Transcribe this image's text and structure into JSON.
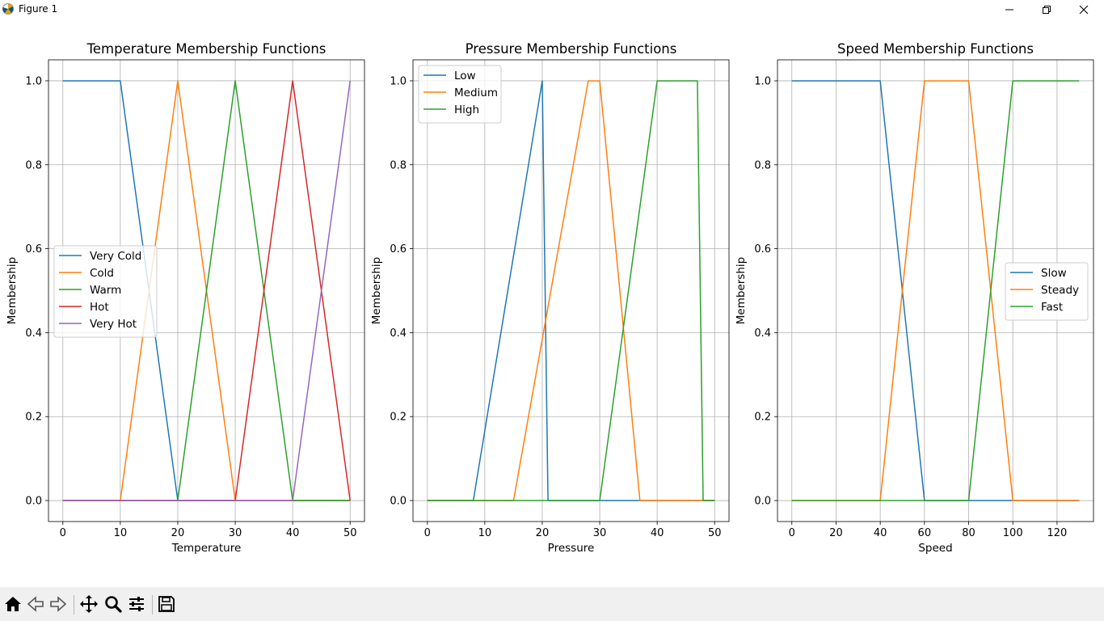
{
  "window": {
    "title": "Figure 1"
  },
  "toolbar": {
    "buttons": [
      "home-icon",
      "back-icon",
      "forward-icon",
      "pan-icon",
      "zoom-icon",
      "configure-icon",
      "save-icon"
    ]
  },
  "chart_data": [
    {
      "type": "line",
      "title": "Temperature Membership Functions",
      "xlabel": "Temperature",
      "ylabel": "Membership",
      "xlim": [
        -2.5,
        52.5
      ],
      "ylim": [
        -0.05,
        1.05
      ],
      "xticks": [
        0,
        10,
        20,
        30,
        40,
        50
      ],
      "yticks": [
        0.0,
        0.2,
        0.4,
        0.6,
        0.8,
        1.0
      ],
      "grid": true,
      "legend": "center-left",
      "series": [
        {
          "name": "Very Cold",
          "color": "#1f77b4",
          "x": [
            0,
            10,
            20,
            50
          ],
          "y": [
            1,
            1,
            0,
            0
          ]
        },
        {
          "name": "Cold",
          "color": "#ff7f0e",
          "x": [
            0,
            10,
            20,
            30,
            50
          ],
          "y": [
            0,
            0,
            1,
            0,
            0
          ]
        },
        {
          "name": "Warm",
          "color": "#2ca02c",
          "x": [
            0,
            20,
            30,
            40,
            50
          ],
          "y": [
            0,
            0,
            1,
            0,
            0
          ]
        },
        {
          "name": "Hot",
          "color": "#d62728",
          "x": [
            0,
            30,
            40,
            50
          ],
          "y": [
            0,
            0,
            1,
            0
          ]
        },
        {
          "name": "Very Hot",
          "color": "#9467bd",
          "x": [
            0,
            40,
            50
          ],
          "y": [
            0,
            0,
            1
          ]
        }
      ]
    },
    {
      "type": "line",
      "title": "Pressure Membership Functions",
      "xlabel": "Pressure",
      "ylabel": "Membership",
      "xlim": [
        -2.5,
        52.5
      ],
      "ylim": [
        -0.05,
        1.05
      ],
      "xticks": [
        0,
        10,
        20,
        30,
        40,
        50
      ],
      "yticks": [
        0.0,
        0.2,
        0.4,
        0.6,
        0.8,
        1.0
      ],
      "grid": true,
      "legend": "upper-left",
      "series": [
        {
          "name": "Low",
          "color": "#1f77b4",
          "x": [
            0,
            8,
            20,
            21,
            50
          ],
          "y": [
            0,
            0,
            1,
            0,
            0
          ]
        },
        {
          "name": "Medium",
          "color": "#ff7f0e",
          "x": [
            0,
            15,
            28,
            30,
            37,
            50
          ],
          "y": [
            0,
            0,
            1,
            1,
            0,
            0
          ]
        },
        {
          "name": "High",
          "color": "#2ca02c",
          "x": [
            0,
            30,
            40,
            47,
            48,
            50
          ],
          "y": [
            0,
            0,
            1,
            1,
            0,
            0
          ]
        }
      ]
    },
    {
      "type": "line",
      "title": "Speed Membership Functions",
      "xlabel": "Speed",
      "ylabel": "Membership",
      "xlim": [
        -6.5,
        136.5
      ],
      "ylim": [
        -0.05,
        1.05
      ],
      "xticks": [
        0,
        20,
        40,
        60,
        80,
        100,
        120
      ],
      "yticks": [
        0.0,
        0.2,
        0.4,
        0.6,
        0.8,
        1.0
      ],
      "grid": true,
      "legend": "center-right",
      "series": [
        {
          "name": "Slow",
          "color": "#1f77b4",
          "x": [
            0,
            40,
            60,
            130
          ],
          "y": [
            1,
            1,
            0,
            0
          ]
        },
        {
          "name": "Steady",
          "color": "#ff7f0e",
          "x": [
            0,
            40,
            60,
            80,
            100,
            130
          ],
          "y": [
            0,
            0,
            1,
            1,
            0,
            0
          ]
        },
        {
          "name": "Fast",
          "color": "#2ca02c",
          "x": [
            0,
            80,
            100,
            130
          ],
          "y": [
            0,
            0,
            1,
            1
          ]
        }
      ]
    }
  ]
}
